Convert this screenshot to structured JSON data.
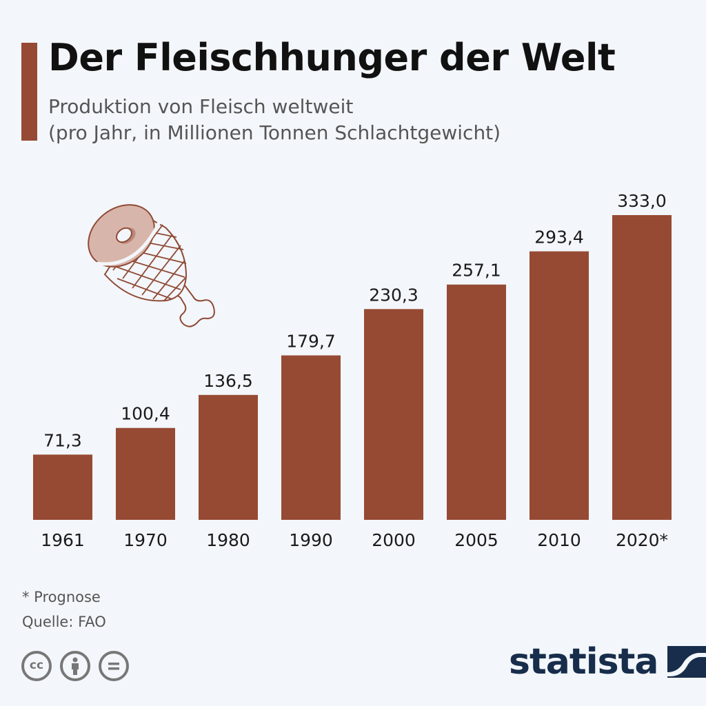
{
  "header": {
    "title": "Der Fleischhunger der Welt",
    "subtitle_line1": "Produktion von Fleisch weltweit",
    "subtitle_line2": "(pro Jahr, in Millionen Tonnen Schlachtgewicht)"
  },
  "colors": {
    "bar": "#964a33",
    "accent": "#964a33",
    "logo": "#172d4b",
    "background": "#f3f6fa"
  },
  "chart_data": {
    "type": "bar",
    "title": "Der Fleischhunger der Welt",
    "subtitle": "Produktion von Fleisch weltweit (pro Jahr, in Millionen Tonnen Schlachtgewicht)",
    "categories": [
      "1961",
      "1970",
      "1980",
      "1990",
      "2000",
      "2005",
      "2010",
      "2020*"
    ],
    "values": [
      71.3,
      100.4,
      136.5,
      179.7,
      230.3,
      257.1,
      293.4,
      333.0
    ],
    "value_labels": [
      "71,3",
      "100,4",
      "136,5",
      "179,7",
      "230,3",
      "257,1",
      "293,4",
      "333,0"
    ],
    "xlabel": "",
    "ylabel": "Millionen Tonnen",
    "ylim": [
      0,
      333
    ],
    "grid": false,
    "legend": "none"
  },
  "footer": {
    "note": "* Prognose",
    "source": "Quelle: FAO",
    "license_icons": [
      "cc-icon",
      "attribution-icon",
      "no-derivatives-icon"
    ],
    "cc_label": "cc",
    "logo": "statista"
  }
}
